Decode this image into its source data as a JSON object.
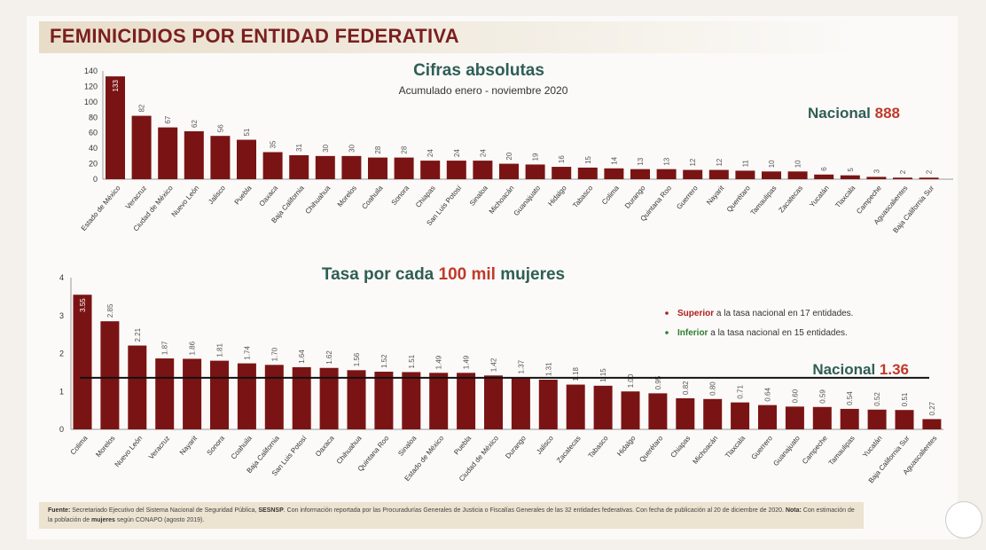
{
  "title": "FEMINICIDIOS POR ENTIDAD FEDERATIVA",
  "chart_data": [
    {
      "type": "bar",
      "title": "Cifras absolutas",
      "subtitle": "Acumulado enero - noviembre 2020",
      "annotation": {
        "label": "Nacional",
        "value": "888"
      },
      "ylim": [
        0,
        140
      ],
      "yticks": [
        0,
        20,
        40,
        60,
        80,
        100,
        120,
        140
      ],
      "categories": [
        "Estado de México",
        "Veracruz",
        "Ciudad de México",
        "Nuevo León",
        "Jalisco",
        "Puebla",
        "Oaxaca",
        "Baja California",
        "Chihuahua",
        "Morelos",
        "Coahuila",
        "Sonora",
        "Chiapas",
        "San Luis Potosí",
        "Sinaloa",
        "Michoacán",
        "Guanajuato",
        "Hidalgo",
        "Tabasco",
        "Colima",
        "Durango",
        "Quintana Roo",
        "Guerrero",
        "Nayarit",
        "Querétaro",
        "Tamaulipas",
        "Zacatecas",
        "Yucatán",
        "Tlaxcala",
        "Campeche",
        "Aguascalientes",
        "Baja California Sur"
      ],
      "values": [
        133,
        82,
        67,
        62,
        56,
        51,
        35,
        31,
        30,
        30,
        28,
        28,
        24,
        24,
        24,
        20,
        19,
        16,
        15,
        14,
        13,
        13,
        12,
        12,
        11,
        10,
        10,
        6,
        5,
        3,
        2,
        2
      ],
      "bar_color": "#7a1414"
    },
    {
      "type": "bar",
      "title_parts": [
        "Tasa por cada ",
        "100 mil",
        " mujeres"
      ],
      "ylim": [
        0,
        4
      ],
      "yticks": [
        0,
        1,
        2,
        3,
        4
      ],
      "reference_line": {
        "label": "Nacional",
        "value": 1.36,
        "value_label": "1.36"
      },
      "legend": [
        {
          "bold": "Superior",
          "text": " a la tasa nacional en 17 entidades.",
          "color": "#b01c1c"
        },
        {
          "bold": "Inferior",
          "text": " a la tasa nacional en 15 entidades.",
          "color": "#2e7d32"
        }
      ],
      "categories": [
        "Colima",
        "Morelos",
        "Nuevo León",
        "Veracruz",
        "Nayarit",
        "Sonora",
        "Coahuila",
        "Baja California",
        "San Luis Potosí",
        "Oaxaca",
        "Chihuahua",
        "Quintana Roo",
        "Sinaloa",
        "Estado de México",
        "Puebla",
        "Ciudad de México",
        "Durango",
        "Jalisco",
        "Zacatecas",
        "Tabasco",
        "Hidalgo",
        "Querétaro",
        "Chiapas",
        "Michoacán",
        "Tlaxcala",
        "Guerrero",
        "Guanajuato",
        "Campeche",
        "Tamaulipas",
        "Yucatán",
        "Baja California Sur",
        "Aguascalientes"
      ],
      "values": [
        3.55,
        2.85,
        2.21,
        1.87,
        1.86,
        1.81,
        1.74,
        1.7,
        1.64,
        1.62,
        1.56,
        1.52,
        1.51,
        1.49,
        1.49,
        1.42,
        1.37,
        1.31,
        1.18,
        1.15,
        1.0,
        0.95,
        0.82,
        0.8,
        0.71,
        0.64,
        0.6,
        0.59,
        0.54,
        0.52,
        0.51,
        0.27
      ],
      "value_labels": [
        "3.55",
        "2.85",
        "2.21",
        "1.87",
        "1.86",
        "1.81",
        "1.74",
        "1.70",
        "1.64",
        "1.62",
        "1.56",
        "1.52",
        "1.51",
        "1.49",
        "1.49",
        "1.42",
        "1.37",
        "1.31",
        "1.18",
        "1.15",
        "1.00",
        "0.95",
        "0.82",
        "0.80",
        "0.71",
        "0.64",
        "0.60",
        "0.59",
        "0.54",
        "0.52",
        "0.51",
        "0.27"
      ],
      "bar_color": "#7a1414"
    }
  ],
  "footer": {
    "fuente_label": "Fuente:",
    "fuente_text": " Secretariado Ejecutivo del Sistema Nacional de Seguridad Pública, ",
    "sesnsp": "SESNSP",
    "fuente_rest": ". Con información reportada por las Procuradurías Generales de Justicia o Fiscalías Generales de las 32 entidades federativas. Con fecha de publicación al 20 de diciembre de 2020. ",
    "nota_label": "Nota:",
    "nota_text": " Con estimación de la población de ",
    "mujeres": "mujeres",
    "nota_rest": " según CONAPO (agosto 2019)."
  }
}
